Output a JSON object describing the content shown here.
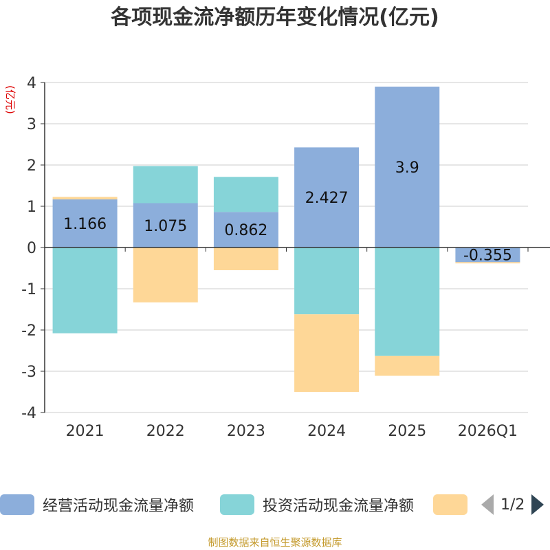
{
  "chart_data": {
    "type": "bar",
    "stacked": true,
    "title": "各项现金流净额历年变化情况(亿元)",
    "ylabel": "(亿元)",
    "ylim": [
      -4,
      4
    ],
    "yticks": [
      4,
      3,
      2,
      1,
      0,
      -1,
      -2,
      -3,
      -4
    ],
    "grid": true,
    "categories": [
      "2021",
      "2022",
      "2023",
      "2024",
      "2025",
      "2026Q1"
    ],
    "series": [
      {
        "name": "经营活动现金流量净额",
        "color": "#8caedb",
        "values": [
          1.166,
          1.075,
          0.862,
          2.427,
          3.9,
          -0.355
        ],
        "labels": [
          "1.166",
          "1.075",
          "0.862",
          "2.427",
          "3.9",
          "-0.355"
        ]
      },
      {
        "name": "投资活动现金流量净额",
        "color": "#86d4d8",
        "values": [
          -2.08,
          0.9,
          0.85,
          -1.62,
          -2.63,
          0.0
        ]
      },
      {
        "name": "",
        "color": "#fed797",
        "values": [
          0.06,
          -1.33,
          -0.55,
          -1.88,
          -0.48,
          -0.03
        ]
      }
    ],
    "legend_position": "bottom"
  },
  "legend": {
    "pager_text": "1/2"
  },
  "source": "制图数据来自恒生聚源数据库"
}
